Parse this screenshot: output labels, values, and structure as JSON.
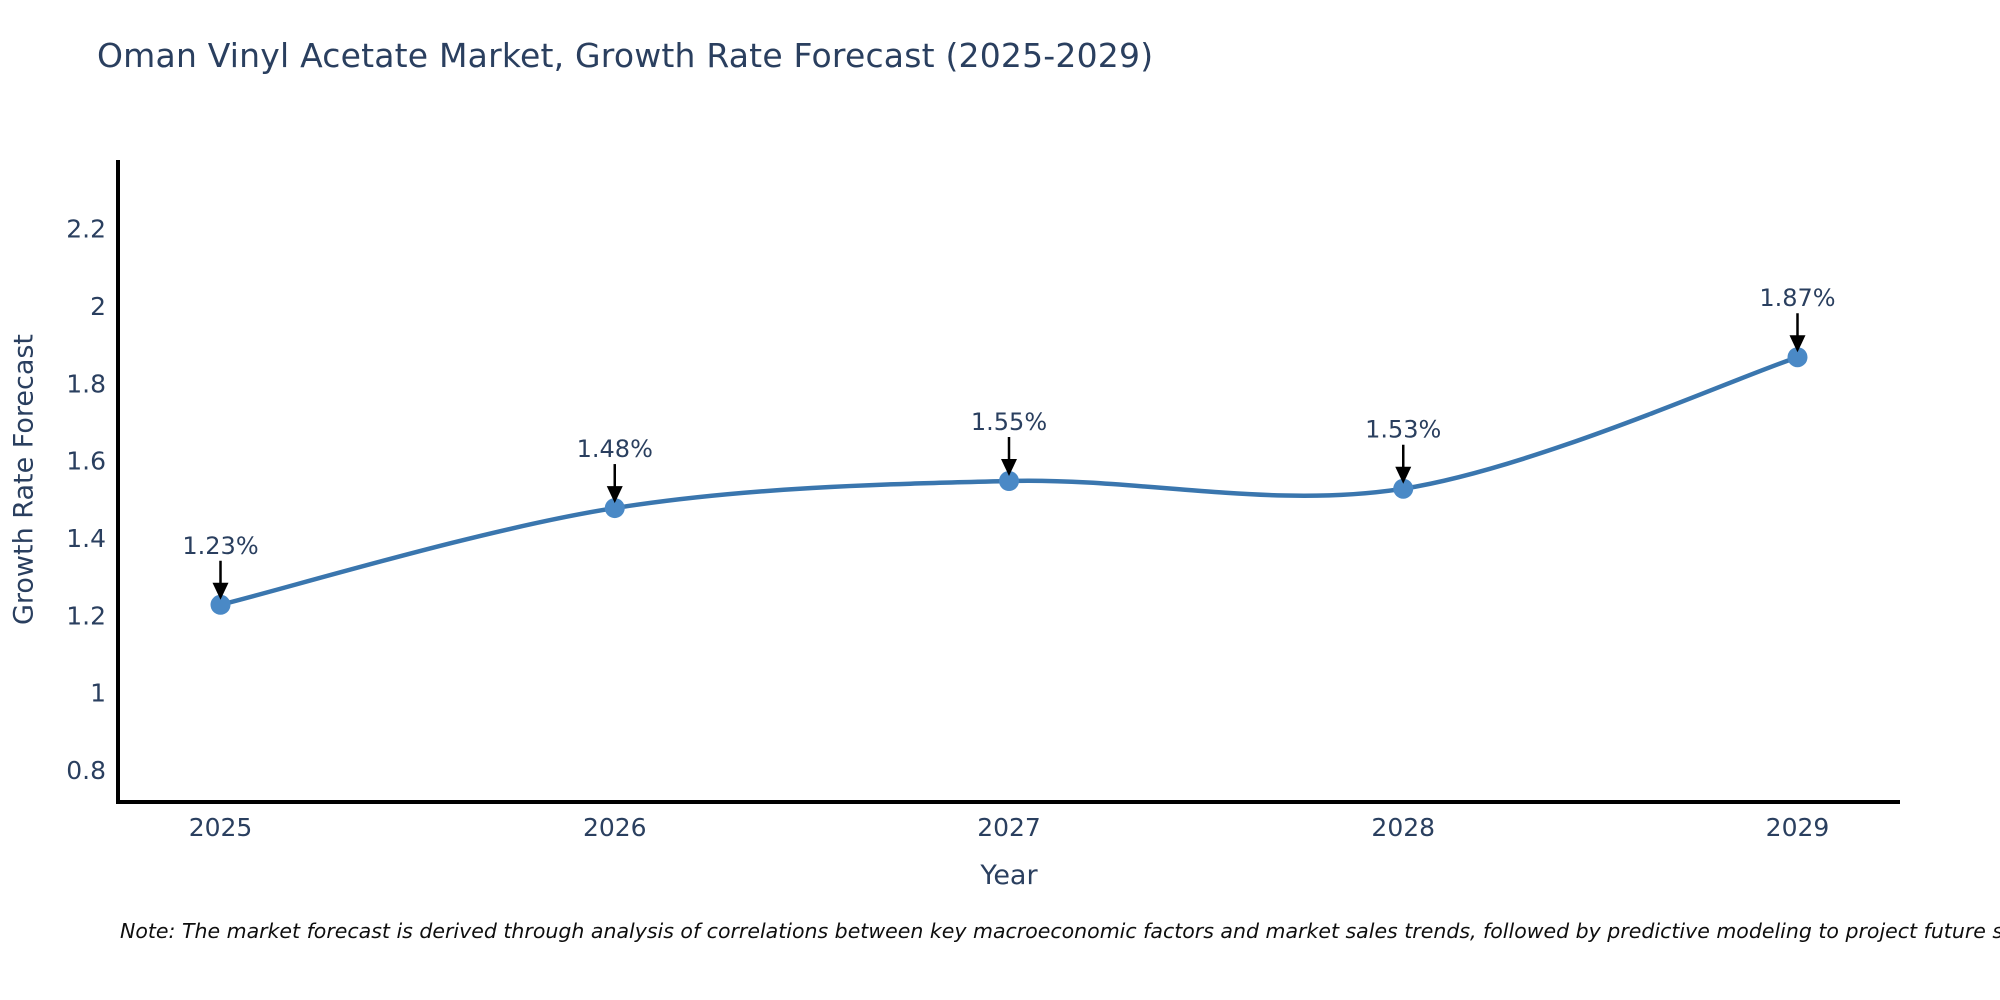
{
  "title": "Oman Vinyl Acetate Market, Growth Rate Forecast (2025-2029)",
  "note": "Note: The market forecast is derived through analysis of correlations between key macroeconomic factors and market sales trends, followed by predictive modeling to project future sales",
  "chart_data": {
    "type": "line",
    "title": "Oman Vinyl Acetate Market, Growth Rate Forecast (2025-2029)",
    "xlabel": "Year",
    "ylabel": "Growth Rate Forecast",
    "x": [
      2025,
      2026,
      2027,
      2028,
      2029
    ],
    "categories": [
      "2025",
      "2026",
      "2027",
      "2028",
      "2029"
    ],
    "values": [
      1.23,
      1.48,
      1.55,
      1.53,
      1.87
    ],
    "point_labels": [
      "1.23%",
      "1.48%",
      "1.55%",
      "1.53%",
      "1.87%"
    ],
    "yticks": [
      0.8,
      1,
      1.2,
      1.4,
      1.6,
      1.8,
      2,
      2.2
    ],
    "ytick_labels": [
      "0.8",
      "1",
      "1.2",
      "1.4",
      "1.6",
      "1.8",
      "2",
      "2.2"
    ],
    "xlim": [
      2024.74,
      2029.26
    ],
    "ylim": [
      0.72,
      2.38
    ],
    "grid": false,
    "legend": "none",
    "line_shape": "spline",
    "marker": "circle",
    "annotations_have_arrows": true
  },
  "colors": {
    "background": "#ffffff",
    "line": "#3a76ae",
    "marker": "#4a89c6",
    "axis_line": "#000000",
    "title_text": "#2a3f5f",
    "tick_text": "#2a3f5f",
    "annotation_text": "#2a3f5f",
    "arrow": "#000000",
    "note_text": "#0e0e0e"
  }
}
